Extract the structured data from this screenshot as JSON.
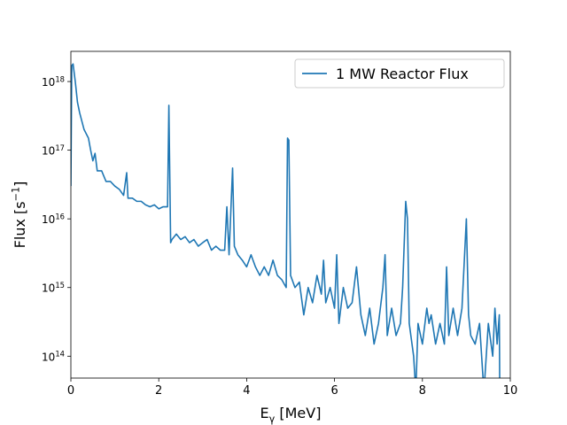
{
  "chart_data": {
    "type": "line",
    "xlabel": "E_{γ} [MeV]",
    "ylabel": "Flux [s^{−1}]",
    "xlim": [
      0,
      10
    ],
    "ylim": [
      48000000000000.0,
      2.75e+18
    ],
    "yscale": "log",
    "xticks": [
      0,
      2,
      4,
      6,
      8,
      10
    ],
    "yticks": [
      {
        "value": 100000000000000.0,
        "label": "10^{14}"
      },
      {
        "value": 1000000000000000.0,
        "label": "10^{15}"
      },
      {
        "value": 1e+16,
        "label": "10^{16}"
      },
      {
        "value": 1e+17,
        "label": "10^{17}"
      },
      {
        "value": 1e+18,
        "label": "10^{18}"
      }
    ],
    "grid": false,
    "legend": "upper right",
    "series": [
      {
        "name": "1 MW Reactor Flux",
        "color": "#1f77b4",
        "x": [
          0,
          0.02,
          0.05,
          0.1,
          0.15,
          0.2,
          0.3,
          0.4,
          0.45,
          0.5,
          0.55,
          0.6,
          0.7,
          0.8,
          0.9,
          1.0,
          1.1,
          1.2,
          1.27,
          1.3,
          1.4,
          1.5,
          1.6,
          1.7,
          1.8,
          1.9,
          2.0,
          2.1,
          2.2,
          2.23,
          2.26,
          2.27,
          2.3,
          2.4,
          2.5,
          2.6,
          2.7,
          2.8,
          2.9,
          3.0,
          3.1,
          3.2,
          3.3,
          3.4,
          3.5,
          3.55,
          3.6,
          3.68,
          3.72,
          3.8,
          3.9,
          4.0,
          4.1,
          4.2,
          4.3,
          4.4,
          4.5,
          4.6,
          4.7,
          4.8,
          4.9,
          4.93,
          4.96,
          5.0,
          5.1,
          5.2,
          5.3,
          5.4,
          5.5,
          5.6,
          5.7,
          5.75,
          5.8,
          5.9,
          6.0,
          6.05,
          6.1,
          6.2,
          6.3,
          6.4,
          6.5,
          6.6,
          6.7,
          6.8,
          6.9,
          7.0,
          7.1,
          7.15,
          7.2,
          7.3,
          7.4,
          7.5,
          7.55,
          7.62,
          7.66,
          7.7,
          7.8,
          7.85,
          7.9,
          8.0,
          8.1,
          8.15,
          8.2,
          8.3,
          8.4,
          8.5,
          8.55,
          8.6,
          8.7,
          8.8,
          8.9,
          9.0,
          9.05,
          9.1,
          9.2,
          9.3,
          9.4,
          9.5,
          9.6,
          9.65,
          9.7,
          9.75,
          9.76
        ],
        "values": [
          3e+16,
          1.7e+18,
          1.8e+18,
          1e+18,
          5e+17,
          3.5e+17,
          2e+17,
          1.5e+17,
          1e+17,
          7e+16,
          9e+16,
          5e+16,
          5e+16,
          3.5e+16,
          3.5e+16,
          3e+16,
          2.7e+16,
          2.2e+16,
          4.7e+16,
          2e+16,
          2e+16,
          1.8e+16,
          1.8e+16,
          1.6e+16,
          1.5e+16,
          1.6e+16,
          1.4e+16,
          1.5e+16,
          1.5e+16,
          4.5e+17,
          1.5e+16,
          4500000000000000.0,
          5000000000000000.0,
          6000000000000000.0,
          5000000000000000.0,
          5500000000000000.0,
          4500000000000000.0,
          5000000000000000.0,
          4000000000000000.0,
          4500000000000000.0,
          5000000000000000.0,
          3500000000000000.0,
          4000000000000000.0,
          3500000000000000.0,
          3500000000000000.0,
          1.5e+16,
          3000000000000000.0,
          5.5e+16,
          4000000000000000.0,
          3000000000000000.0,
          2500000000000000.0,
          2000000000000000.0,
          3000000000000000.0,
          2000000000000000.0,
          1500000000000000.0,
          2000000000000000.0,
          1500000000000000.0,
          2500000000000000.0,
          1500000000000000.0,
          1300000000000000.0,
          1000000000000000.0,
          1.5e+17,
          1.4e+17,
          1500000000000000.0,
          1000000000000000.0,
          1200000000000000.0,
          400000000000000.0,
          1000000000000000.0,
          600000000000000.0,
          1500000000000000.0,
          800000000000000.0,
          2500000000000000.0,
          600000000000000.0,
          1000000000000000.0,
          500000000000000.0,
          3000000000000000.0,
          300000000000000.0,
          1000000000000000.0,
          500000000000000.0,
          600000000000000.0,
          2000000000000000.0,
          400000000000000.0,
          200000000000000.0,
          500000000000000.0,
          150000000000000.0,
          300000000000000.0,
          1000000000000000.0,
          3000000000000000.0,
          200000000000000.0,
          500000000000000.0,
          200000000000000.0,
          300000000000000.0,
          1000000000000000.0,
          1.8e+16,
          1e+16,
          300000000000000.0,
          100000000000000.0,
          30000000000000.0,
          300000000000000.0,
          150000000000000.0,
          500000000000000.0,
          300000000000000.0,
          400000000000000.0,
          150000000000000.0,
          300000000000000.0,
          150000000000000.0,
          2000000000000000.0,
          200000000000000.0,
          500000000000000.0,
          200000000000000.0,
          500000000000000.0,
          1e+16,
          400000000000000.0,
          200000000000000.0,
          150000000000000.0,
          300000000000000.0,
          30000000000000.0,
          300000000000000.0,
          100000000000000.0,
          500000000000000.0,
          150000000000000.0,
          400000000000000.0,
          30000000000000.0
        ]
      }
    ]
  }
}
